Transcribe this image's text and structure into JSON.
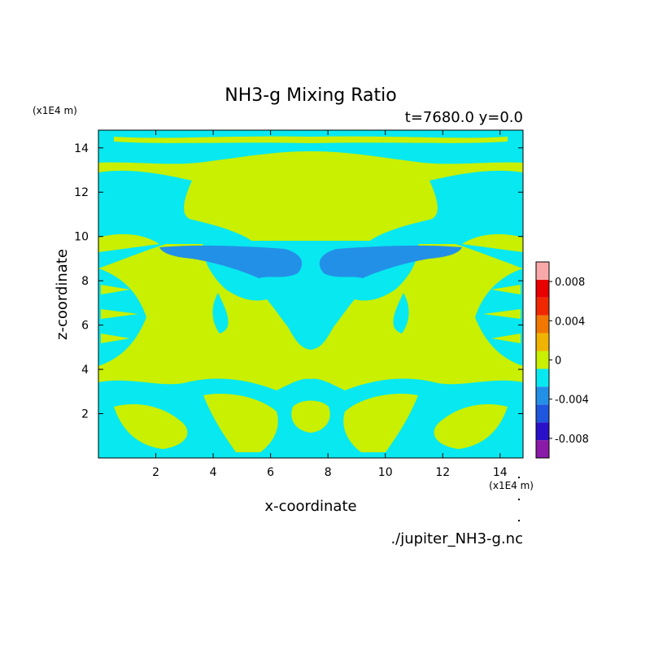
{
  "chart_data": {
    "type": "heatmap",
    "title": "NH3-g Mixing Ratio",
    "subtitle": "t=7680.0 y=0.0",
    "xlabel": "x-coordinate",
    "ylabel": "z-coordinate",
    "x_unit": "(x1E4 m)",
    "y_unit": "(x1E4 m)",
    "xlim": [
      0,
      14.8
    ],
    "ylim": [
      0,
      14.8
    ],
    "x_ticks": [
      2,
      4,
      6,
      8,
      10,
      12,
      14
    ],
    "y_ticks": [
      2,
      4,
      6,
      8,
      10,
      12,
      14
    ],
    "x_tick_labels": [
      "2",
      "4",
      "6",
      "8",
      "10",
      "12",
      "14"
    ],
    "y_tick_labels": [
      "2",
      "4",
      "6",
      "8",
      "10",
      "12",
      "14"
    ],
    "colorbar": {
      "placement": "right",
      "levels": [
        -0.01,
        -0.008,
        -0.006,
        -0.004,
        -0.002,
        0,
        0.002,
        0.004,
        0.006,
        0.008,
        0.01
      ],
      "colors": [
        "#8B1AA8",
        "#2A10C8",
        "#1F56DE",
        "#2390E8",
        "#08E8F0",
        "#C8F000",
        "#F0B400",
        "#F07800",
        "#F02800",
        "#E80000",
        "#F8A8A8"
      ],
      "tick_values": [
        0.008,
        0.004,
        0,
        -0.004,
        -0.008
      ],
      "tick_labels": [
        "0.008",
        "0.004",
        "0",
        "-0.004",
        "-0.008"
      ]
    },
    "field_summary": {
      "dominant_classes": [
        "0 to 0.002",
        "-0.002 to 0"
      ],
      "min_class": "-0.004 to -0.002",
      "features": [
        {
          "label": "negative band",
          "x": [
            2.2,
            12.6
          ],
          "z": [
            8.3,
            9.7
          ],
          "class": "-0.004 to -0.002"
        },
        {
          "label": "cyan layer top",
          "z": [
            14.0,
            14.8
          ],
          "class": "-0.002 to 0"
        },
        {
          "label": "cyan layer mid",
          "z": [
            9.6,
            11.8
          ],
          "class": "-0.002 to 0"
        },
        {
          "label": "cyan layer low",
          "z": [
            0.3,
            3.2
          ],
          "class": "-0.002 to 0"
        }
      ]
    },
    "source_file": "./jupiter_NH3-g.nc"
  }
}
